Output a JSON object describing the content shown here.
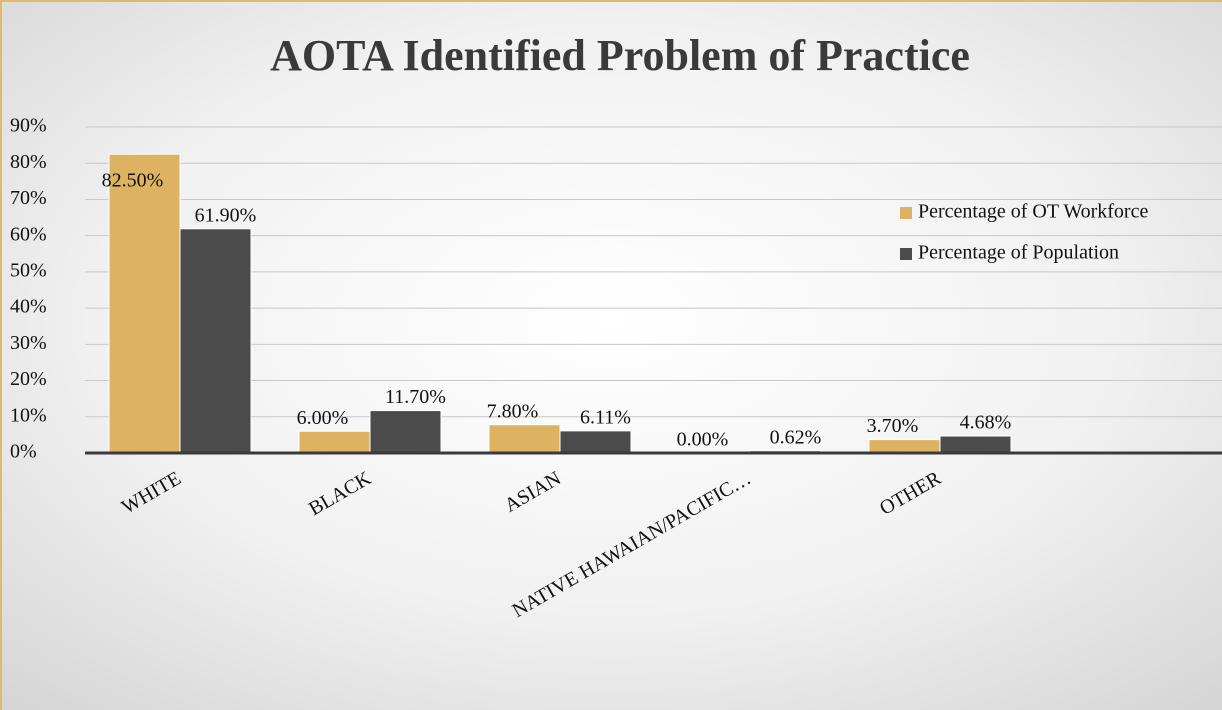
{
  "chart_data": {
    "type": "bar",
    "title": "AOTA Identified Problem of Practice",
    "categories": [
      "WHITE",
      "BLACK",
      "ASIAN",
      "NATIVE HAWAIAN/PACIFIC…",
      "OTHER"
    ],
    "series": [
      {
        "name": "Percentage of OT Workforce",
        "color": "#ddb262",
        "values": [
          82.5,
          6.0,
          7.8,
          0.0,
          3.7
        ],
        "value_labels": [
          "82.50%",
          "6.00%",
          "7.80%",
          "0.00%",
          "3.70%"
        ]
      },
      {
        "name": "Percentage of Population",
        "color": "#4b4b4b",
        "values": [
          61.9,
          11.7,
          6.11,
          0.62,
          4.68
        ],
        "value_labels": [
          "61.90%",
          "11.70%",
          "6.11%",
          "0.62%",
          "4.68%"
        ]
      }
    ],
    "ylim": [
      0,
      90
    ],
    "yticks": [
      {
        "value": 0,
        "label": "0%"
      },
      {
        "value": 10,
        "label": "10%"
      },
      {
        "value": 20,
        "label": "20%"
      },
      {
        "value": 30,
        "label": "30%"
      },
      {
        "value": 40,
        "label": "40%"
      },
      {
        "value": 50,
        "label": "50%"
      },
      {
        "value": 60,
        "label": "60%"
      },
      {
        "value": 70,
        "label": "70%"
      },
      {
        "value": 80,
        "label": "80%"
      },
      {
        "value": 90,
        "label": "90%"
      }
    ],
    "grid": true,
    "legend": "right"
  }
}
